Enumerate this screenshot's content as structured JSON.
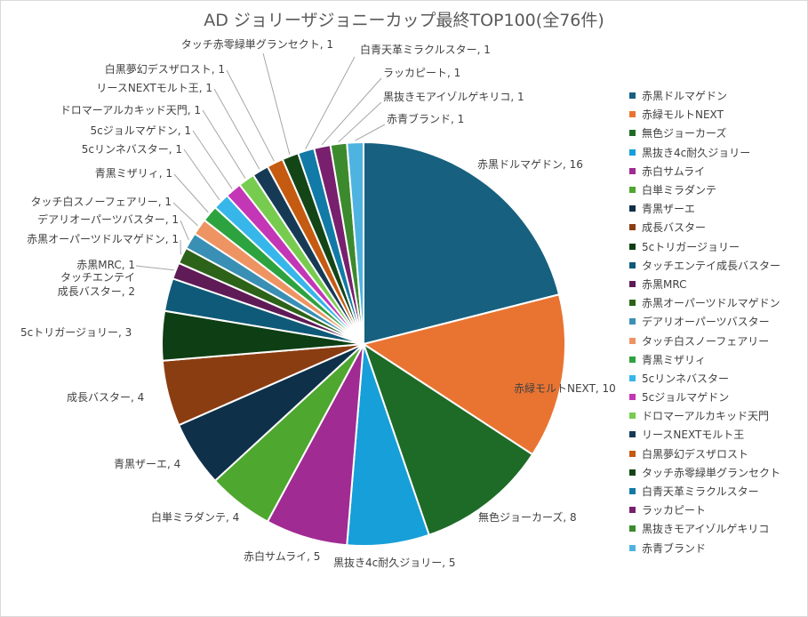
{
  "chart_data": {
    "type": "pie",
    "title": "AD ジョリーザジョニーカップ最終TOP100(全76件)",
    "legend_position": "right",
    "slices": [
      {
        "label": "赤黒ドルマゲドン",
        "value": 16,
        "color": "#17607f",
        "data_label": "赤黒ドルマゲドン, 16"
      },
      {
        "label": "赤緑モルトNEXT",
        "value": 10,
        "color": "#e97432",
        "data_label": "赤緑モルトNEXT, 10"
      },
      {
        "label": "無色ジョーカーズ",
        "value": 8,
        "color": "#1e6b27",
        "data_label": "無色ジョーカーズ, 8"
      },
      {
        "label": "黒抜き4c耐久ジョリー",
        "value": 5,
        "color": "#169fd8",
        "data_label": "黒抜き4c耐久ジョリー, 5"
      },
      {
        "label": "赤白サムライ",
        "value": 5,
        "color": "#a02b93",
        "data_label": "赤白サムライ, 5"
      },
      {
        "label": "白単ミラダンテ",
        "value": 4,
        "color": "#4ea72e",
        "data_label": "白単ミラダンテ, 4"
      },
      {
        "label": "青黒ザーエ",
        "value": 4,
        "color": "#0e3049",
        "data_label": "青黒ザーエ, 4"
      },
      {
        "label": "成長バスター",
        "value": 4,
        "color": "#8b3d12",
        "data_label": "成長バスター, 4"
      },
      {
        "label": "5cトリガージョリー",
        "value": 3,
        "color": "#0e3e13",
        "data_label": "5cトリガージョリー, 3"
      },
      {
        "label": "タッチエンテイ成長バスター",
        "value": 2,
        "color": "#0f5a78",
        "data_label": "タッチエンテイ\n成長バスター, 2"
      },
      {
        "label": "赤黒MRC",
        "value": 1,
        "color": "#5f1b56",
        "data_label": "赤黒MRC, 1"
      },
      {
        "label": "赤黒オーパーツドルマゲドン",
        "value": 1,
        "color": "#2d6319",
        "data_label": "赤黒オーパーツドルマゲドン, 1"
      },
      {
        "label": "デアリオーパーツバスター",
        "value": 1,
        "color": "#3a8fb5",
        "data_label": "デアリオーパーツバスター, 1"
      },
      {
        "label": "タッチ白スノーフェアリー",
        "value": 1,
        "color": "#ee9463",
        "data_label": "タッチ白スノーフェアリー, 1"
      },
      {
        "label": "青黒ミザリィ",
        "value": 1,
        "color": "#2da33f",
        "data_label": "青黒ミザリィ, 1"
      },
      {
        "label": "5cリンネバスター",
        "value": 1,
        "color": "#37b6ea",
        "data_label": "5cリンネバスター, 1"
      },
      {
        "label": "5cジョルマゲドン",
        "value": 1,
        "color": "#c336b6",
        "data_label": "5cジョルマゲドン, 1"
      },
      {
        "label": "ドロマーアルカキッド天門",
        "value": 1,
        "color": "#77cc4f",
        "data_label": "ドロマーアルカキッド天門, 1"
      },
      {
        "label": "リースNEXTモルト王",
        "value": 1,
        "color": "#163a56",
        "data_label": "リースNEXTモルト王, 1"
      },
      {
        "label": "白黒夢幻デスザロスト",
        "value": 1,
        "color": "#c55a11",
        "data_label": "白黒夢幻デスザロスト, 1"
      },
      {
        "label": "タッチ赤零緑単グランセクト",
        "value": 1,
        "color": "#144517",
        "data_label": "タッチ赤零緑単グランセクト, 1"
      },
      {
        "label": "白青天革ミラクルスター",
        "value": 1,
        "color": "#117aa6",
        "data_label": "白青天革ミラクルスター, 1"
      },
      {
        "label": "ラッカピート",
        "value": 1,
        "color": "#78206e",
        "data_label": "ラッカピート, 1"
      },
      {
        "label": "黒抜きモアイゾルゲキリコ",
        "value": 1,
        "color": "#3c8a2e",
        "data_label": "黒抜きモアイゾルゲキリコ, 1"
      },
      {
        "label": "赤青ブランド",
        "value": 1,
        "color": "#4eb3e0",
        "data_label": "赤青ブランド, 1"
      }
    ]
  }
}
